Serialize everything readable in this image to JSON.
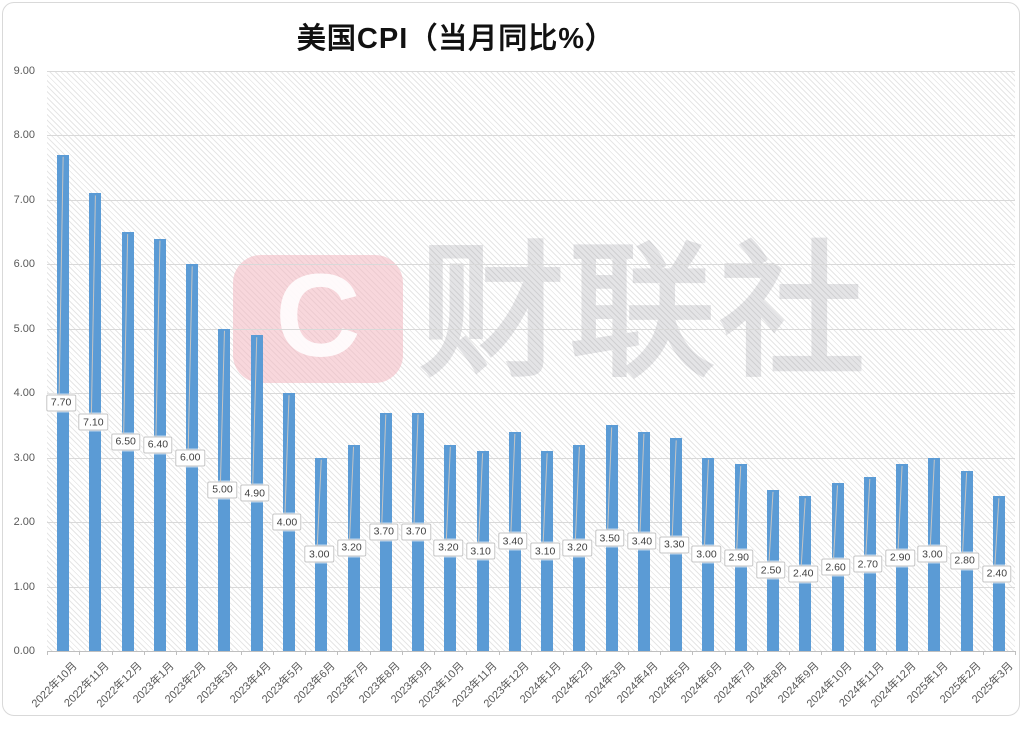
{
  "chart_data": {
    "type": "bar",
    "title": "美国CPI（当月同比%）",
    "categories": [
      "2022年10月",
      "2022年11月",
      "2022年12月",
      "2023年1月",
      "2023年2月",
      "2023年3月",
      "2023年4月",
      "2023年5月",
      "2023年6月",
      "2023年7月",
      "2023年8月",
      "2023年9月",
      "2023年10月",
      "2023年11月",
      "2023年12月",
      "2024年1月",
      "2024年2月",
      "2024年3月",
      "2024年4月",
      "2024年5月",
      "2024年6月",
      "2024年7月",
      "2024年8月",
      "2024年9月",
      "2024年10月",
      "2024年11月",
      "2024年12月",
      "2025年1月",
      "2025年2月",
      "2025年3月"
    ],
    "values": [
      7.7,
      7.1,
      6.5,
      6.4,
      6.0,
      5.0,
      4.9,
      4.0,
      3.0,
      3.2,
      3.7,
      3.7,
      3.2,
      3.1,
      3.4,
      3.1,
      3.2,
      3.5,
      3.4,
      3.3,
      3.0,
      2.9,
      2.5,
      2.4,
      2.6,
      2.7,
      2.9,
      3.0,
      2.8,
      2.4
    ],
    "data_labels": [
      "7.70",
      "7.10",
      "6.50",
      "6.40",
      "6.00",
      "5.00",
      "4.90",
      "4.00",
      "3.00",
      "3.20",
      "3.70",
      "3.70",
      "3.20",
      "3.10",
      "3.40",
      "3.10",
      "3.20",
      "3.50",
      "3.40",
      "3.30",
      "3.00",
      "2.90",
      "2.50",
      "2.40",
      "2.60",
      "2.70",
      "2.90",
      "3.00",
      "2.80",
      "2.40"
    ],
    "xlabel": "",
    "ylabel": "",
    "ylim": [
      0,
      9
    ],
    "yticks": [
      "9.00",
      "8.00",
      "7.00",
      "6.00",
      "5.00",
      "4.00",
      "3.00",
      "2.00",
      "1.00",
      "0.00"
    ],
    "grid": "horizontal, step 1.00",
    "legend": "none",
    "bar_color": "#5B9BD5",
    "watermark": {
      "logo_letter": "C",
      "logo_color": "#F3B7C0",
      "text": "财联社",
      "text_color": "#E4E4E6"
    }
  }
}
